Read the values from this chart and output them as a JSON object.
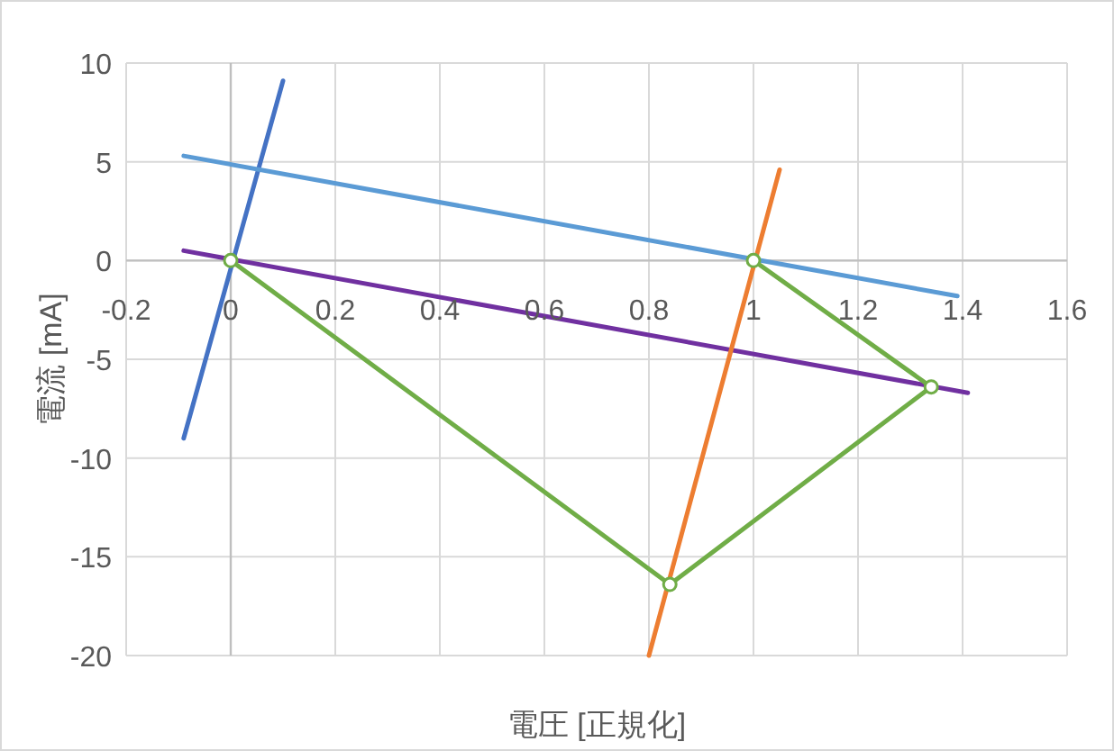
{
  "chart_data": {
    "type": "line",
    "xlabel": "電圧 [正規化]",
    "ylabel": "電流 [mA]",
    "xlim": [
      -0.2,
      1.6
    ],
    "ylim": [
      -20,
      10
    ],
    "xticks": [
      -0.2,
      0,
      0.2,
      0.4,
      0.6,
      0.8,
      1,
      1.2,
      1.4,
      1.6
    ],
    "yticks": [
      -20,
      -15,
      -10,
      -5,
      0,
      5,
      10
    ],
    "grid": true,
    "series": [
      {
        "color": "#4472c4",
        "x": [
          -0.09,
          0.1
        ],
        "values": [
          -9,
          9.1
        ],
        "marker": "none"
      },
      {
        "color": "#5b9bd5",
        "x": [
          -0.09,
          1.39
        ],
        "values": [
          5.3,
          -1.8
        ],
        "marker": "none"
      },
      {
        "color": "#7030a0",
        "x": [
          -0.09,
          1.41
        ],
        "values": [
          0.5,
          -6.7
        ],
        "marker": "none"
      },
      {
        "color": "#ed7d31",
        "x": [
          0.8,
          1.05
        ],
        "values": [
          -20,
          4.6
        ],
        "marker": "none"
      },
      {
        "color": "#70ad47",
        "x": [
          0,
          0.84,
          1.34,
          1
        ],
        "values": [
          0,
          -16.4,
          -6.4,
          0
        ],
        "marker": "circle"
      }
    ]
  }
}
